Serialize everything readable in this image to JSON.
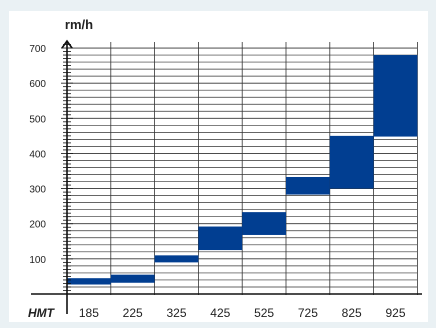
{
  "chart_data": {
    "type": "bar",
    "subtype": "floating-range",
    "ylabel": "rm/h",
    "xlabel": "HMT",
    "yticks": [
      100,
      200,
      300,
      400,
      500,
      600,
      700
    ],
    "ylim": [
      0,
      730
    ],
    "grid": true,
    "categories": [
      "185",
      "225",
      "325",
      "425",
      "525",
      "725",
      "825",
      "925"
    ],
    "ranges": [
      {
        "low": 27,
        "high": 45
      },
      {
        "low": 32,
        "high": 55
      },
      {
        "low": 90,
        "high": 110
      },
      {
        "low": 125,
        "high": 192
      },
      {
        "low": 168,
        "high": 233
      },
      {
        "low": 283,
        "high": 333
      },
      {
        "low": 300,
        "high": 450
      },
      {
        "low": 448,
        "high": 680
      }
    ],
    "bar_color": "#013e91"
  }
}
